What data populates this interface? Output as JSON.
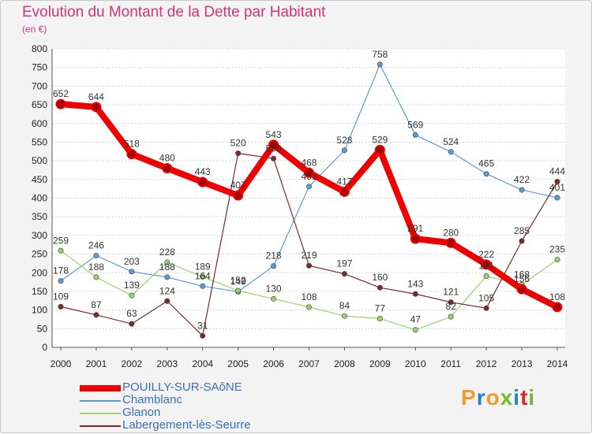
{
  "header": {
    "title": "Evolution du Montant de la Dette par Habitant",
    "unit": "(en €)"
  },
  "logo": {
    "text": "Proxiti",
    "colors": [
      "#f29a2e",
      "#2a7fc0",
      "#f29a2e",
      "#76b82a",
      "#2a7fc0",
      "#e2242a",
      "#76b82a"
    ]
  },
  "chart_data": {
    "type": "line",
    "x": [
      2000,
      2001,
      2002,
      2003,
      2004,
      2005,
      2006,
      2007,
      2008,
      2009,
      2010,
      2011,
      2012,
      2013,
      2014
    ],
    "ylim": [
      0,
      800
    ],
    "yticks": [
      0,
      50,
      100,
      150,
      200,
      250,
      300,
      350,
      400,
      450,
      500,
      550,
      600,
      650,
      700,
      750,
      800
    ],
    "grid": "horizontal",
    "legend_position": "bottom-left",
    "series": [
      {
        "name": "POUILLY-SUR-SAôNE",
        "color": "#ee0000",
        "values": [
          652,
          644,
          518,
          480,
          443,
          407,
          543,
          468,
          417,
          529,
          291,
          280,
          222,
          156,
          108
        ]
      },
      {
        "name": "Chamblanc",
        "color": "#5b9bd5",
        "values": [
          178,
          246,
          203,
          188,
          164,
          149,
          218,
          431,
          528,
          758,
          569,
          524,
          465,
          422,
          401
        ]
      },
      {
        "name": "Glanon",
        "color": "#99d26c",
        "values": [
          259,
          188,
          139,
          228,
          189,
          152,
          130,
          108,
          84,
          77,
          47,
          82,
          191,
          168,
          235
        ]
      },
      {
        "name": "Labergement-lès-Seurre",
        "color": "#7a2a2a",
        "values": [
          109,
          87,
          63,
          124,
          31,
          520,
          506,
          219,
          197,
          160,
          143,
          121,
          105,
          285,
          444
        ]
      }
    ]
  }
}
